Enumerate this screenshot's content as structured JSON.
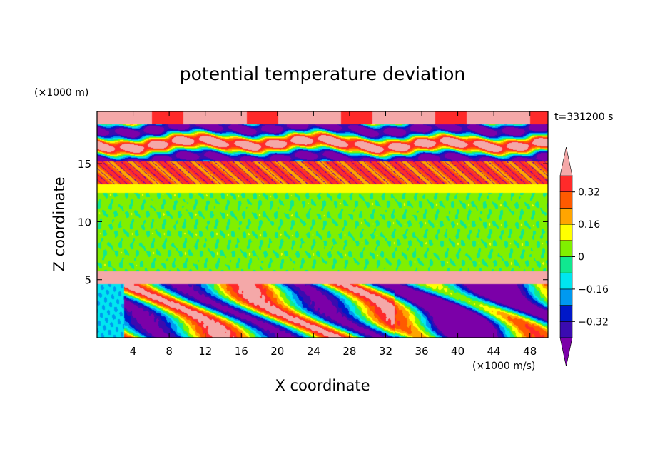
{
  "chart_data": {
    "type": "heatmap",
    "title": "potential temperature deviation",
    "xlabel": "X coordinate",
    "ylabel": "Z coordinate",
    "x_unit": "(×1000 m/s)",
    "y_unit": "(×1000 m)",
    "time_label": "t=331200 s",
    "xlim": [
      0,
      50
    ],
    "ylim": [
      0,
      19.5
    ],
    "x_ticks": [
      4,
      8,
      12,
      16,
      20,
      24,
      28,
      32,
      36,
      40,
      44,
      48
    ],
    "y_ticks": [
      5,
      10,
      15
    ],
    "colorbar": {
      "levels": [
        -0.4,
        -0.32,
        -0.24,
        -0.16,
        -0.08,
        0,
        0.08,
        0.16,
        0.24,
        0.32,
        0.4
      ],
      "labels": [
        "0.32",
        "0.16",
        "0",
        "−0.16",
        "−0.32"
      ],
      "label_values": [
        0.32,
        0.16,
        0,
        -0.16,
        -0.32
      ],
      "colors": [
        "#7b00a8",
        "#3a0bb0",
        "#0018c8",
        "#0099f0",
        "#00e6f0",
        "#10e890",
        "#80f000",
        "#ffff00",
        "#ffa500",
        "#ff5a00",
        "#ff2a2a",
        "#f4a8a8"
      ]
    },
    "regions": [
      {
        "z": [
          0,
          4.6
        ],
        "description": "turbulent lower layer"
      },
      {
        "z": [
          4.6,
          5.7
        ],
        "value": 0.45
      },
      {
        "z": [
          5.7,
          13.2
        ],
        "value": 0.0
      },
      {
        "z": [
          13.2,
          15.2
        ],
        "value": 0.3
      },
      {
        "z": [
          15.2,
          19.5
        ],
        "description": "alternating positive and negative bands"
      }
    ]
  }
}
